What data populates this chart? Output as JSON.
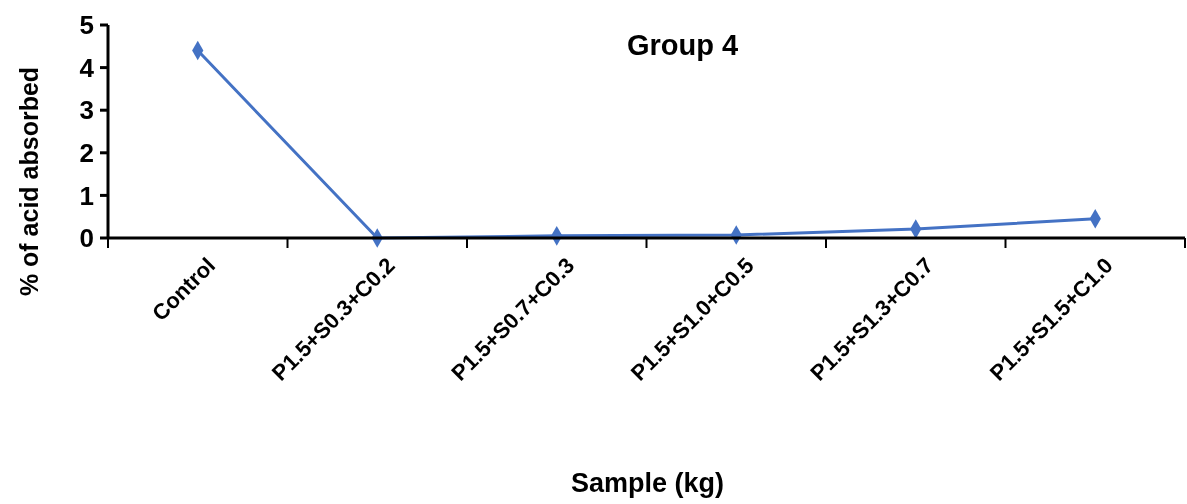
{
  "chart_data": {
    "type": "line",
    "title": "Group 4",
    "xlabel": "Sample (kg)",
    "ylabel": "% of acid absorbed",
    "categories": [
      "Control",
      "P1.5+S0.3+C0.2",
      "P1.5+S0.7+C0.3",
      "P1.5+S1.0+C0.5",
      "P1.5+S1.3+C0.7",
      "P1.5+S1.5+C1.0"
    ],
    "series": [
      {
        "color": "#4472c4",
        "values": [
          4.4,
          0.0,
          0.05,
          0.07,
          0.21,
          0.45
        ]
      }
    ],
    "ylim": [
      0,
      5
    ],
    "yticks": [
      0,
      1,
      2,
      3,
      4,
      5
    ],
    "grid": false,
    "marker": "diamond",
    "line_style": "solid"
  }
}
